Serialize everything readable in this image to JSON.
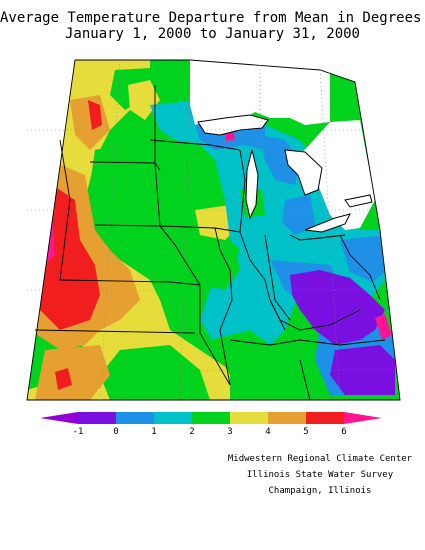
{
  "header": {
    "title_line1": "Average Temperature Departure from Mean in Degrees F",
    "title_line2": "January 1, 2000 to January 31, 2000"
  },
  "legend": {
    "tick_labels": [
      "-1",
      "0",
      "1",
      "2",
      "3",
      "4",
      "5",
      "6"
    ],
    "colors": [
      "#9400d3",
      "#7a10e0",
      "#1e90e6",
      "#00c0c8",
      "#00d21e",
      "#e6dc3c",
      "#e6a032",
      "#f01e1e",
      "#ff1493"
    ]
  },
  "credits": {
    "line1": "Midwestern Regional Climate Center",
    "line2": "Illinois State Water Survey",
    "line3": "Champaign, Illinois"
  },
  "map": {
    "colors": {
      "purple": "#7a10e0",
      "blue": "#1e90e6",
      "cyan": "#00c0c8",
      "green": "#00d21e",
      "yellow": "#e6dc3c",
      "orange": "#e6a032",
      "red": "#f01e1e",
      "magenta": "#ff1493"
    }
  }
}
